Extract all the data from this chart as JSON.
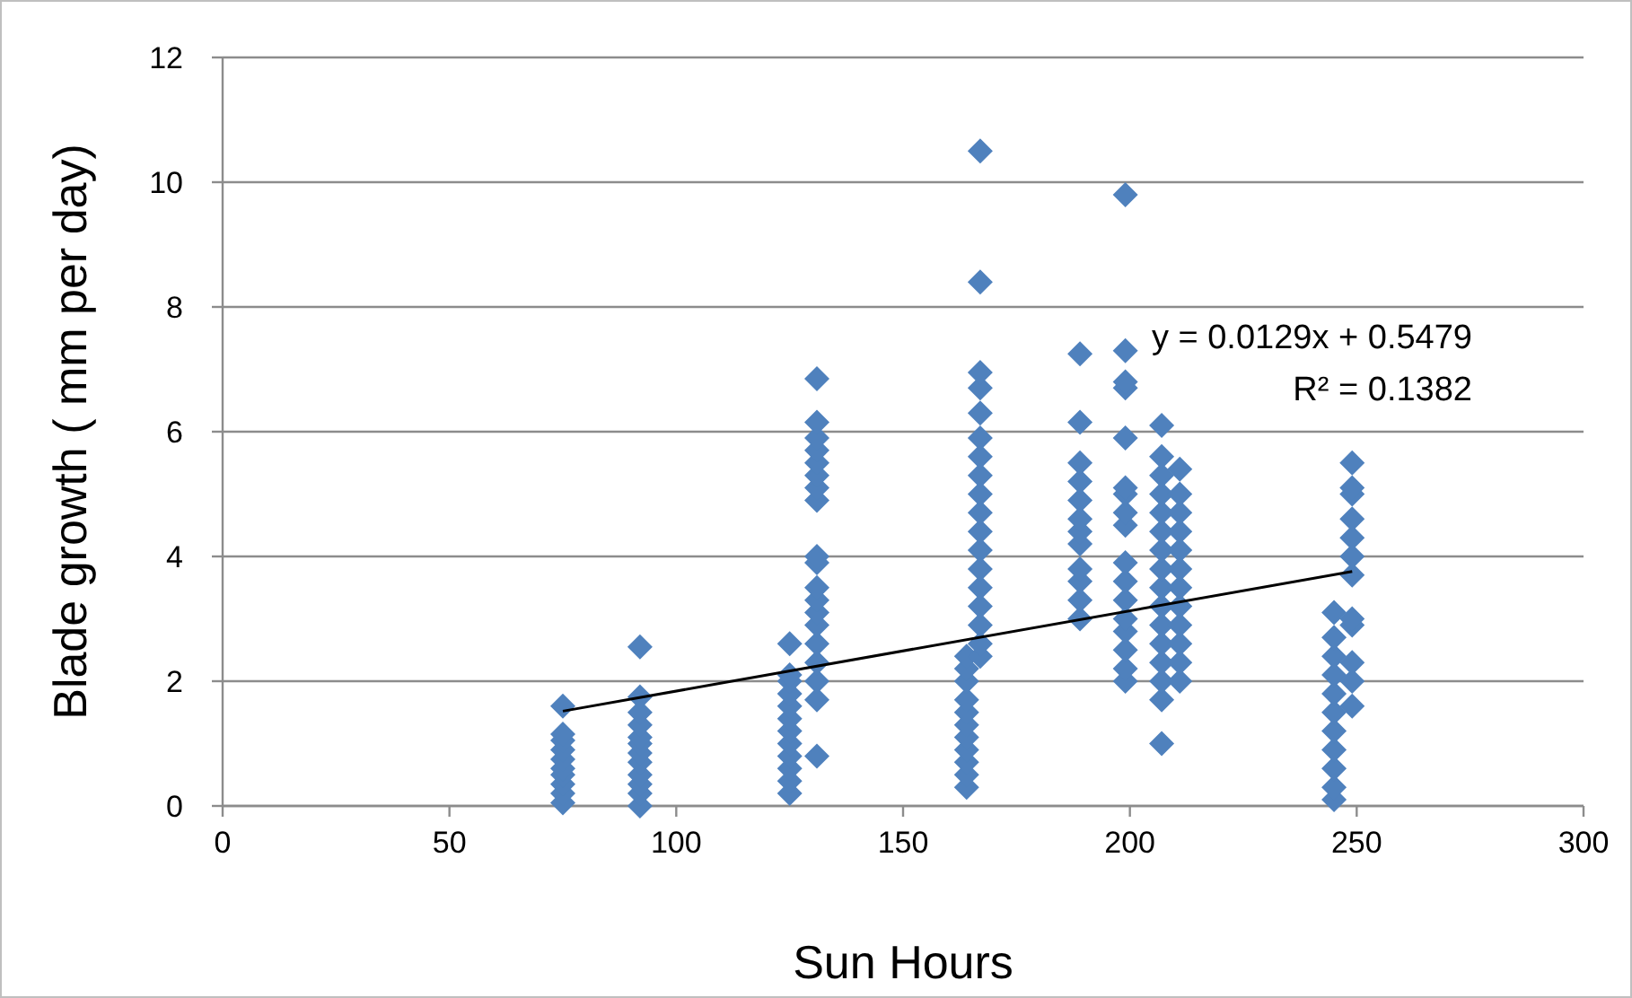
{
  "chart_data": {
    "type": "scatter",
    "xlabel": "Sun Hours",
    "ylabel": "Blade growth  ( mm per day)",
    "xlim": [
      0,
      300
    ],
    "ylim": [
      0,
      12
    ],
    "xticks": [
      0,
      50,
      100,
      150,
      200,
      250,
      300
    ],
    "yticks": [
      0,
      2,
      4,
      6,
      8,
      10,
      12
    ],
    "grid": "y",
    "marker": "diamond",
    "annotations": [
      "y = 0.0129x + 0.5479",
      "R² = 0.1382"
    ],
    "series": [
      {
        "color": "#4f81bd",
        "x": [
          75,
          75,
          75,
          75,
          75,
          75,
          75,
          75,
          75,
          75,
          92,
          92,
          92,
          92,
          92,
          92,
          92,
          92,
          92,
          92,
          92,
          92,
          125,
          125,
          125,
          125,
          125,
          125,
          125,
          125,
          125,
          125,
          125,
          125,
          131,
          131,
          131,
          131,
          131,
          131,
          131,
          131,
          131,
          131,
          131,
          131,
          131,
          131,
          131,
          131,
          131,
          131,
          131,
          164,
          164,
          164,
          164,
          164,
          164,
          164,
          164,
          164,
          164,
          164,
          167,
          167,
          167,
          167,
          167,
          167,
          167,
          167,
          167,
          167,
          167,
          167,
          167,
          167,
          167,
          167,
          167,
          167,
          189,
          189,
          189,
          189,
          189,
          189,
          189,
          189,
          189,
          189,
          189,
          189,
          199,
          199,
          199,
          199,
          199,
          199,
          199,
          199,
          199,
          199,
          199,
          199,
          199,
          199,
          199,
          199,
          199,
          207,
          207,
          207,
          207,
          207,
          207,
          207,
          207,
          207,
          207,
          207,
          207,
          207,
          207,
          207,
          207,
          211,
          211,
          211,
          211,
          211,
          211,
          211,
          211,
          211,
          211,
          211,
          211,
          245,
          245,
          245,
          245,
          245,
          245,
          245,
          245,
          245,
          245,
          245,
          249,
          249,
          249,
          249,
          249,
          249,
          249,
          249,
          249,
          249,
          249,
          249
        ],
        "values": [
          0.05,
          0.2,
          0.35,
          0.5,
          0.6,
          0.75,
          0.9,
          1.05,
          1.15,
          1.6,
          0,
          0.2,
          0.35,
          0.5,
          0.7,
          0.85,
          1.0,
          1.1,
          1.3,
          1.5,
          1.75,
          2.55,
          0.2,
          0.4,
          0.6,
          0.8,
          1.0,
          1.2,
          1.4,
          1.6,
          1.8,
          2.0,
          2.1,
          2.6,
          0.8,
          1.7,
          2.0,
          2.3,
          2.6,
          2.9,
          3.1,
          3.3,
          3.5,
          3.9,
          4.0,
          4.9,
          5.1,
          5.3,
          5.5,
          5.7,
          5.9,
          6.15,
          6.85,
          0.3,
          0.5,
          0.7,
          0.9,
          1.1,
          1.3,
          1.5,
          1.7,
          2.0,
          2.2,
          2.4,
          2.4,
          2.6,
          2.9,
          3.2,
          3.5,
          3.8,
          4.1,
          4.4,
          4.7,
          5.0,
          5.3,
          5.6,
          5.9,
          6.3,
          6.7,
          6.95,
          8.4,
          10.5,
          3.0,
          3.3,
          3.6,
          3.8,
          4.2,
          4.4,
          4.6,
          4.9,
          5.2,
          5.5,
          6.15,
          7.25,
          2.0,
          2.2,
          2.5,
          2.8,
          3.0,
          3.3,
          3.6,
          3.9,
          4.5,
          4.7,
          5.0,
          5.1,
          5.9,
          6.7,
          6.8,
          7.3,
          9.8,
          1.0,
          1.7,
          2.0,
          2.3,
          2.6,
          2.9,
          3.2,
          3.5,
          3.8,
          4.1,
          4.4,
          4.7,
          5.0,
          5.3,
          5.6,
          6.1,
          2.0,
          2.3,
          2.6,
          2.9,
          3.2,
          3.5,
          3.8,
          4.1,
          4.4,
          4.7,
          5.0,
          5.4,
          0.1,
          0.3,
          0.6,
          0.9,
          1.2,
          1.5,
          1.8,
          2.1,
          2.4,
          2.7,
          3.1,
          1.6,
          2.0,
          2.3,
          2.9,
          3.0,
          3.7,
          4.0,
          4.3,
          4.6,
          5.0,
          5.1,
          5.5
        ]
      },
      {
        "type": "line",
        "color": "#000000",
        "marker": "none",
        "x": [
          75,
          249
        ],
        "values": [
          1.52,
          3.76
        ]
      }
    ]
  }
}
